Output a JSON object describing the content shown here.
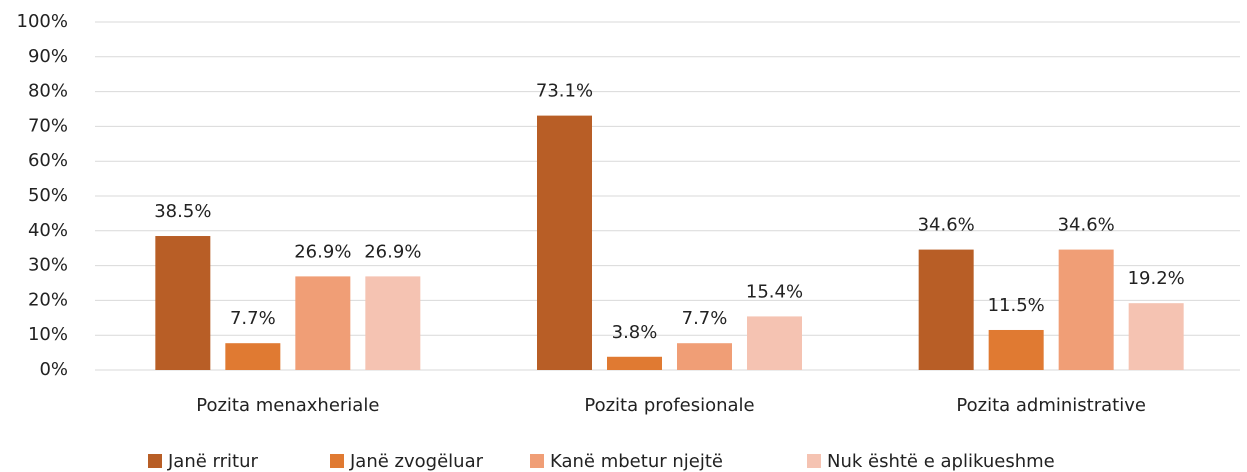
{
  "chart_data": {
    "type": "bar",
    "categories": [
      "Pozita menaxheriale",
      "Pozita profesionale",
      "Pozita administrative"
    ],
    "series": [
      {
        "name": "Janë rritur",
        "color": "#b85e26",
        "values": [
          38.5,
          73.1,
          34.6
        ],
        "value_labels": [
          "38.5%",
          "73.1%",
          "34.6%"
        ]
      },
      {
        "name": "Janë zvogëluar",
        "color": "#e07a32",
        "values": [
          7.7,
          3.8,
          11.5
        ],
        "value_labels": [
          "7.7%",
          "3.8%",
          "11.5%"
        ]
      },
      {
        "name": "Kanë mbetur njejtë",
        "color": "#f09e76",
        "values": [
          26.9,
          7.7,
          34.6
        ],
        "value_labels": [
          "26.9%",
          "7.7%",
          "34.6%"
        ]
      },
      {
        "name": "Nuk është e aplikueshme",
        "color": "#f5c3b2",
        "values": [
          26.9,
          15.4,
          19.2
        ],
        "value_labels": [
          "26.9%",
          "15.4%",
          "19.2%"
        ]
      }
    ],
    "ylim": [
      0,
      100
    ],
    "yticks": [
      {
        "value": 0,
        "label": "0%"
      },
      {
        "value": 10,
        "label": "10%"
      },
      {
        "value": 20,
        "label": "20%"
      },
      {
        "value": 30,
        "label": "30%"
      },
      {
        "value": 40,
        "label": "40%"
      },
      {
        "value": 50,
        "label": "50%"
      },
      {
        "value": 60,
        "label": "60%"
      },
      {
        "value": 70,
        "label": "70%"
      },
      {
        "value": 80,
        "label": "80%"
      },
      {
        "value": 90,
        "label": "90%"
      },
      {
        "value": 100,
        "label": "100%"
      }
    ],
    "grid": true,
    "legend": "bottom"
  }
}
